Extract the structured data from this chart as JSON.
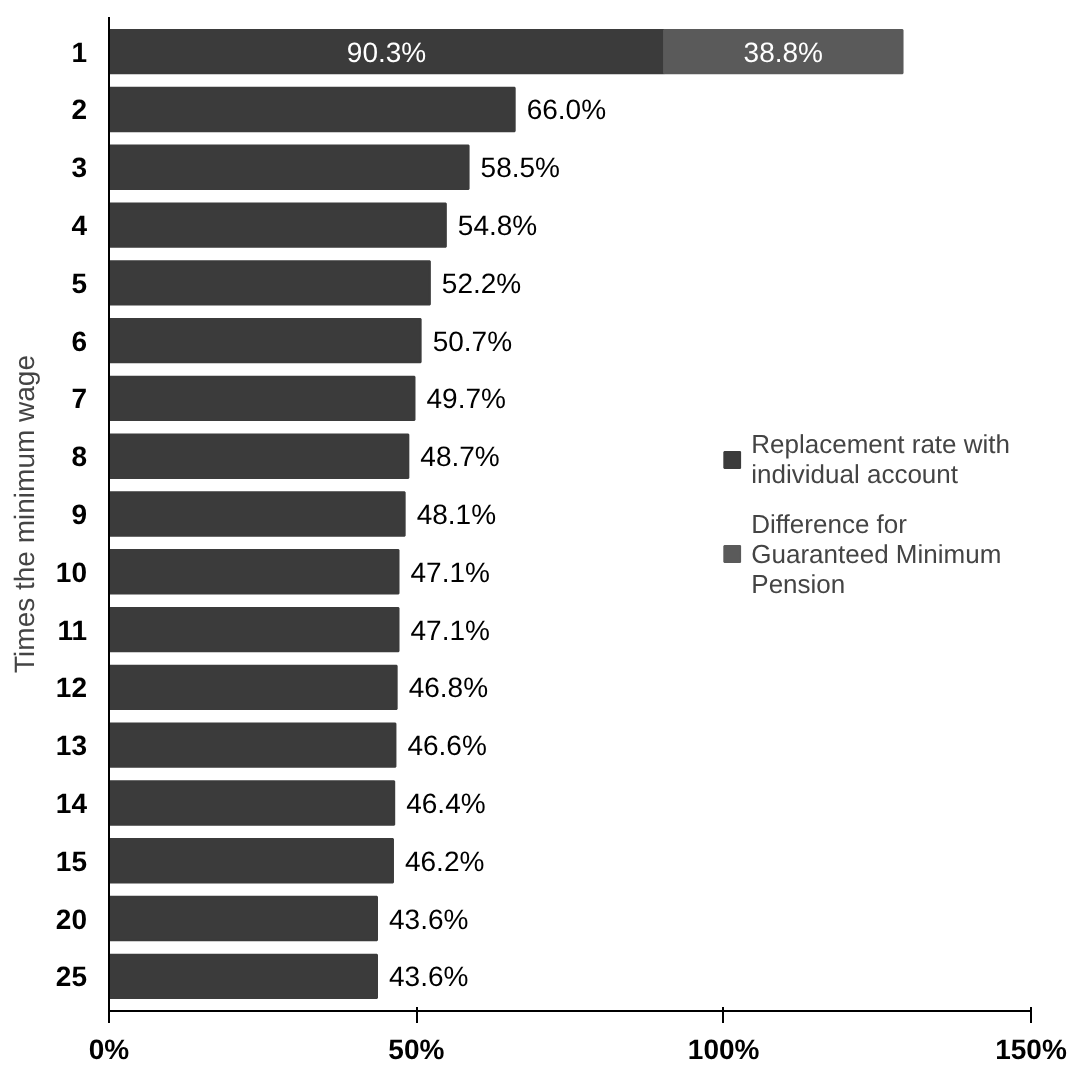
{
  "chart_data": {
    "type": "bar",
    "orientation": "horizontal",
    "stacked": true,
    "ylabel": "Times the minimum wage",
    "categories": [
      "1",
      "2",
      "3",
      "4",
      "5",
      "6",
      "7",
      "8",
      "9",
      "10",
      "11",
      "12",
      "13",
      "14",
      "15",
      "20",
      "25"
    ],
    "series": [
      {
        "name": "Replacement rate with individual account",
        "color": "#3b3b3b",
        "values": [
          90.3,
          66.0,
          58.5,
          54.8,
          52.2,
          50.7,
          49.7,
          48.7,
          48.1,
          47.1,
          47.1,
          46.8,
          46.6,
          46.4,
          46.2,
          43.6,
          43.6
        ],
        "value_labels": [
          "90.3%",
          "66.0%",
          "58.5%",
          "54.8%",
          "52.2%",
          "50.7%",
          "49.7%",
          "48.7%",
          "48.1%",
          "47.1%",
          "47.1%",
          "46.8%",
          "46.6%",
          "46.4%",
          "46.2%",
          "43.6%",
          "43.6%"
        ]
      },
      {
        "name": "Difference for Guaranteed Minimum Pension",
        "color": "#5a5a5a",
        "values": [
          38.8,
          null,
          null,
          null,
          null,
          null,
          null,
          null,
          null,
          null,
          null,
          null,
          null,
          null,
          null,
          null,
          null
        ],
        "value_labels": [
          "38.8%",
          null,
          null,
          null,
          null,
          null,
          null,
          null,
          null,
          null,
          null,
          null,
          null,
          null,
          null,
          null,
          null
        ]
      }
    ],
    "xlim": [
      0,
      150
    ],
    "xticks": [
      {
        "value": 0,
        "label": "0%"
      },
      {
        "value": 50,
        "label": "50%"
      },
      {
        "value": 100,
        "label": "100%"
      },
      {
        "value": 150,
        "label": "150%"
      }
    ],
    "grid": false,
    "legend": "right",
    "data_labels": true
  }
}
